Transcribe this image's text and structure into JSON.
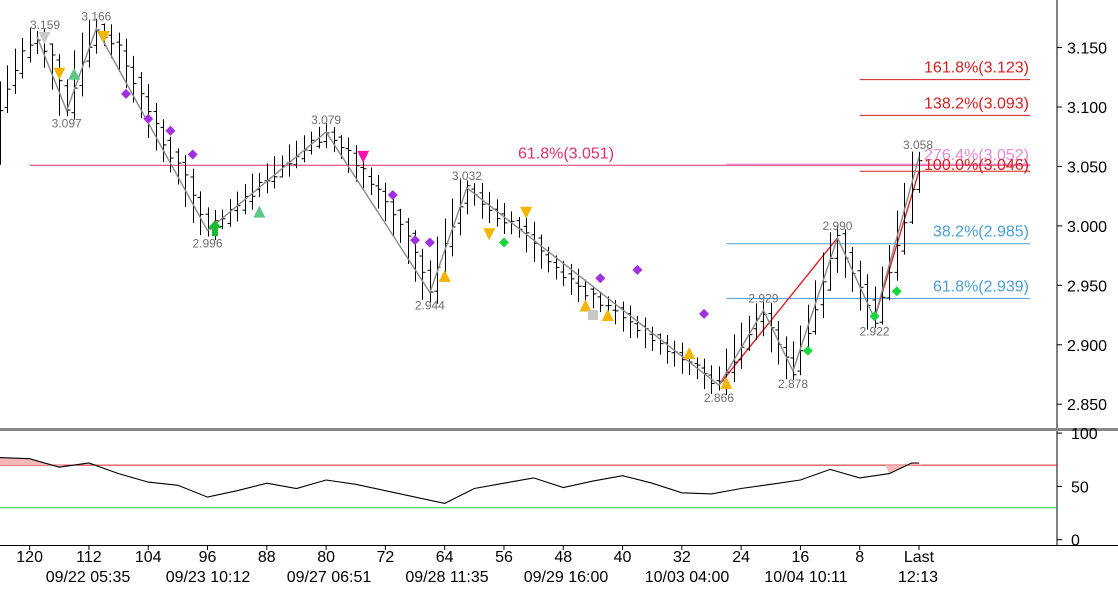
{
  "chart_data": [
    {
      "type": "candlestick",
      "ylim": [
        2.83,
        3.19
      ],
      "y_ticks": [
        "2.850",
        "2.900",
        "2.950",
        "3.000",
        "3.050",
        "3.100",
        "3.150"
      ],
      "x_bar_ticks": [
        "120",
        "112",
        "104",
        "96",
        "88",
        "80",
        "72",
        "64",
        "56",
        "48",
        "40",
        "32",
        "24",
        "16",
        "8",
        "Last"
      ],
      "x_date_ticks": [
        "09/22 05:35",
        "09/23 10:12",
        "09/27 06:51",
        "09/28 11:35",
        "09/29 16:00",
        "10/03 04:00",
        "10/04 10:11",
        "12:13"
      ],
      "bars_back_range": [
        124,
        0
      ],
      "path": [
        [
          124,
          3.1
        ],
        [
          121,
          3.145
        ],
        [
          119,
          3.159
        ],
        [
          117,
          3.14
        ],
        [
          115,
          3.097
        ],
        [
          113,
          3.14
        ],
        [
          111,
          3.166
        ],
        [
          108,
          3.15
        ],
        [
          105,
          3.11
        ],
        [
          102,
          3.07
        ],
        [
          99,
          3.04
        ],
        [
          96,
          2.996
        ],
        [
          93,
          3.01
        ],
        [
          89,
          3.035
        ],
        [
          86,
          3.05
        ],
        [
          83,
          3.065
        ],
        [
          80,
          3.079
        ],
        [
          77,
          3.06
        ],
        [
          73,
          3.03
        ],
        [
          69,
          2.99
        ],
        [
          66,
          2.944
        ],
        [
          63,
          3.0
        ],
        [
          61,
          3.032
        ],
        [
          57,
          3.01
        ],
        [
          53,
          2.995
        ],
        [
          50,
          2.97
        ],
        [
          46,
          2.95
        ],
        [
          43,
          2.935
        ],
        [
          39,
          2.92
        ],
        [
          35,
          2.9
        ],
        [
          31,
          2.885
        ],
        [
          27,
          2.866
        ],
        [
          24,
          2.9
        ],
        [
          21,
          2.929
        ],
        [
          19,
          2.9
        ],
        [
          17,
          2.878
        ],
        [
          14,
          2.93
        ],
        [
          11,
          2.99
        ],
        [
          8,
          2.95
        ],
        [
          6,
          2.922
        ],
        [
          3,
          2.98
        ],
        [
          0,
          3.058
        ]
      ],
      "pivots": [
        {
          "bar": 119,
          "value": 3.159,
          "label": "3.159"
        },
        {
          "bar": 111,
          "value": 3.166,
          "label": "3.166"
        },
        {
          "bar": 115,
          "value": 3.097,
          "label": "3.097"
        },
        {
          "bar": 96,
          "value": 2.996,
          "label": "2.996"
        },
        {
          "bar": 80,
          "value": 3.079,
          "label": "3.079"
        },
        {
          "bar": 66,
          "value": 2.944,
          "label": "2.944"
        },
        {
          "bar": 61,
          "value": 3.032,
          "label": "3.032"
        },
        {
          "bar": 27,
          "value": 2.866,
          "label": "2.866"
        },
        {
          "bar": 21,
          "value": 2.929,
          "label": "2.929"
        },
        {
          "bar": 17,
          "value": 2.878,
          "label": "2.878"
        },
        {
          "bar": 11,
          "value": 2.99,
          "label": "2.990"
        },
        {
          "bar": 6,
          "value": 2.922,
          "label": "2.922"
        },
        {
          "bar": 0,
          "value": 3.058,
          "label": "3.058"
        }
      ],
      "fib_levels": [
        {
          "label": "161.8%(3.123)",
          "value": 3.123,
          "color": "#d42020",
          "from_bar": 8
        },
        {
          "label": "138.2%(3.093)",
          "value": 3.093,
          "color": "#d42020",
          "from_bar": 8
        },
        {
          "label": "61.8%(3.051)",
          "value": 3.051,
          "color": "#e0306e",
          "from_bar": 120
        },
        {
          "label": "276.4%(3.052)",
          "value": 3.052,
          "color": "#e58ad8",
          "from_bar": 26
        },
        {
          "label": "100.0%(3.046)",
          "value": 3.046,
          "color": "#d42020",
          "from_bar": 8
        },
        {
          "label": "38.2%(2.985)",
          "value": 2.985,
          "color": "#4a9fd8",
          "from_bar": 26
        },
        {
          "label": "61.8%(2.939)",
          "value": 2.939,
          "color": "#4a9fd8",
          "from_bar": 26
        }
      ],
      "red_projection_lines": [
        [
          [
            27,
            2.866
          ],
          [
            11,
            2.99
          ]
        ],
        [
          [
            6,
            2.922
          ],
          [
            0,
            3.046
          ]
        ]
      ],
      "markers": [
        {
          "shape": "triangle-down",
          "color": "#c8c8c8",
          "bar": 118,
          "value": 3.158
        },
        {
          "shape": "triangle-down",
          "color": "#f5b400",
          "bar": 116,
          "value": 3.128
        },
        {
          "shape": "triangle-up",
          "color": "#5cc98a",
          "bar": 114,
          "value": 3.128
        },
        {
          "shape": "triangle-down",
          "color": "#f5b400",
          "bar": 110,
          "value": 3.159
        },
        {
          "shape": "diamond",
          "color": "#a030e0",
          "bar": 107,
          "value": 3.111
        },
        {
          "shape": "diamond",
          "color": "#a030e0",
          "bar": 104,
          "value": 3.09
        },
        {
          "shape": "diamond",
          "color": "#a030e0",
          "bar": 101,
          "value": 3.08
        },
        {
          "shape": "diamond",
          "color": "#a030e0",
          "bar": 98,
          "value": 3.06
        },
        {
          "shape": "arrow-up",
          "color": "#19b832",
          "bar": 95,
          "value": 2.998
        },
        {
          "shape": "triangle-up",
          "color": "#5cc98a",
          "bar": 89,
          "value": 3.012
        },
        {
          "shape": "triangle-down",
          "color": "#ff10b0",
          "bar": 75,
          "value": 3.058
        },
        {
          "shape": "diamond",
          "color": "#a030e0",
          "bar": 71,
          "value": 3.026
        },
        {
          "shape": "diamond",
          "color": "#a030e0",
          "bar": 68,
          "value": 2.988
        },
        {
          "shape": "diamond",
          "color": "#a030e0",
          "bar": 66,
          "value": 2.986
        },
        {
          "shape": "triangle-up",
          "color": "#f5b400",
          "bar": 64,
          "value": 2.958
        },
        {
          "shape": "triangle-down",
          "color": "#f5b400",
          "bar": 58,
          "value": 2.993
        },
        {
          "shape": "diamond",
          "color": "#19d640",
          "bar": 56,
          "value": 2.986
        },
        {
          "shape": "triangle-down",
          "color": "#f5b400",
          "bar": 53,
          "value": 3.011
        },
        {
          "shape": "triangle-up",
          "color": "#f5b400",
          "bar": 45,
          "value": 2.933
        },
        {
          "shape": "square",
          "color": "#c8c8c8",
          "bar": 44,
          "value": 2.925
        },
        {
          "shape": "diamond",
          "color": "#a030e0",
          "bar": 43,
          "value": 2.956
        },
        {
          "shape": "triangle-up",
          "color": "#f5b400",
          "bar": 42,
          "value": 2.925
        },
        {
          "shape": "diamond",
          "color": "#a030e0",
          "bar": 38,
          "value": 2.963
        },
        {
          "shape": "triangle-up",
          "color": "#f5b400",
          "bar": 31,
          "value": 2.893
        },
        {
          "shape": "diamond",
          "color": "#a030e0",
          "bar": 29,
          "value": 2.926
        },
        {
          "shape": "triangle-up",
          "color": "#f5b400",
          "bar": 26,
          "value": 2.868
        },
        {
          "shape": "diamond",
          "color": "#19d640",
          "bar": 15,
          "value": 2.895
        },
        {
          "shape": "diamond",
          "color": "#19d640",
          "bar": 6,
          "value": 2.924
        },
        {
          "shape": "diamond",
          "color": "#19d640",
          "bar": 3,
          "value": 2.945
        }
      ]
    },
    {
      "type": "line",
      "ylim": [
        -5,
        102
      ],
      "y_ticks": [
        "0",
        "50",
        "100"
      ],
      "overbought": 70,
      "oversold": 30,
      "x": [
        124,
        120,
        116,
        112,
        108,
        104,
        100,
        96,
        92,
        88,
        84,
        80,
        76,
        72,
        68,
        64,
        60,
        56,
        52,
        48,
        44,
        40,
        36,
        32,
        28,
        24,
        20,
        16,
        12,
        8,
        4,
        1,
        0
      ],
      "values": [
        77,
        76,
        68,
        72,
        62,
        54,
        51,
        40,
        46,
        53,
        48,
        56,
        52,
        46,
        40,
        34,
        48,
        53,
        58,
        49,
        55,
        60,
        53,
        44,
        43,
        48,
        52,
        56,
        66,
        58,
        62,
        72,
        72
      ]
    }
  ]
}
